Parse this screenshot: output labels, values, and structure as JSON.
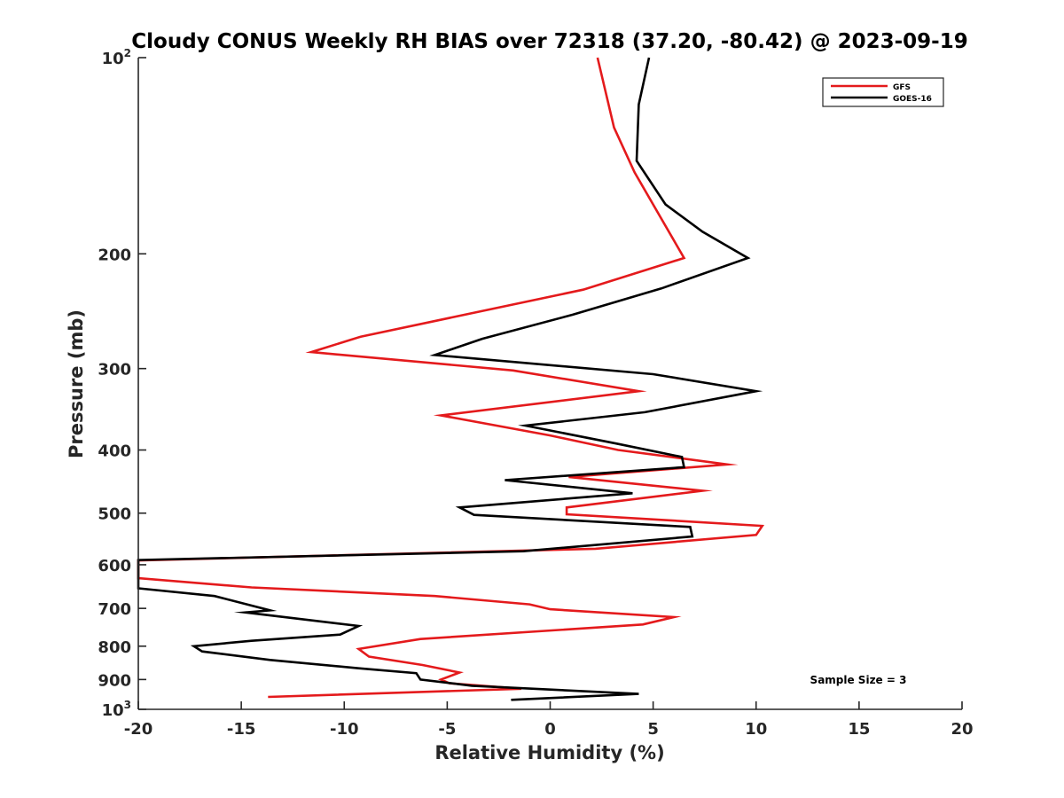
{
  "chart_data": {
    "type": "line",
    "title": "Cloudy CONUS Weekly RH BIAS over 72318 (37.20, -80.42) @ 2023-09-19",
    "xlabel": "Relative Humidity (%)",
    "ylabel": "Pressure (mb)",
    "xlim": [
      -20,
      20
    ],
    "ylim": [
      100,
      1000
    ],
    "yscale": "log",
    "y_reversed": true,
    "xticks": [
      -20,
      -15,
      -10,
      -5,
      0,
      5,
      10,
      15,
      20
    ],
    "xtick_labels": [
      "-20",
      "-15",
      "-10",
      "-5",
      "0",
      "5",
      "10",
      "15",
      "20"
    ],
    "yticks": [
      {
        "value": 100,
        "base": "10",
        "exp": "2"
      },
      {
        "value": 200,
        "label": "200"
      },
      {
        "value": 300,
        "label": "300"
      },
      {
        "value": 400,
        "label": "400"
      },
      {
        "value": 500,
        "label": "500"
      },
      {
        "value": 600,
        "label": "600"
      },
      {
        "value": 700,
        "label": "700"
      },
      {
        "value": 800,
        "label": "800"
      },
      {
        "value": 900,
        "label": "900"
      },
      {
        "value": 1000,
        "base": "10",
        "exp": "3"
      }
    ],
    "legend": {
      "position": "top-right",
      "entries": [
        "GFS",
        "GOES-16"
      ]
    },
    "annotation": "Sample Size = 3",
    "series": [
      {
        "name": "GFS",
        "color": "#e41a1c",
        "points": [
          [
            2.3,
            100
          ],
          [
            3.1,
            128
          ],
          [
            4.1,
            150
          ],
          [
            6.5,
            203
          ],
          [
            1.6,
            227
          ],
          [
            -9.2,
            268
          ],
          [
            -11.6,
            283
          ],
          [
            -1.8,
            302
          ],
          [
            4.3,
            325
          ],
          [
            -5.3,
            354
          ],
          [
            0.0,
            380
          ],
          [
            3.3,
            400
          ],
          [
            8.6,
            421
          ],
          [
            0.9,
            440
          ],
          [
            7.4,
            462
          ],
          [
            0.8,
            490
          ],
          [
            0.8,
            502
          ],
          [
            10.3,
            523
          ],
          [
            10.0,
            540
          ],
          [
            2.2,
            567
          ],
          [
            -20,
            591
          ],
          [
            -20,
            629
          ],
          [
            -14.5,
            650
          ],
          [
            -5.6,
            670
          ],
          [
            -1.0,
            690
          ],
          [
            0.0,
            702
          ],
          [
            6.0,
            722
          ],
          [
            4.5,
            741
          ],
          [
            -6.3,
            780
          ],
          [
            -9.3,
            808
          ],
          [
            -8.8,
            830
          ],
          [
            -6.2,
            855
          ],
          [
            -4.4,
            878
          ],
          [
            -5.3,
            900
          ],
          [
            -4.9,
            912
          ],
          [
            -1.4,
            930
          ],
          [
            -13.7,
            957
          ]
        ]
      },
      {
        "name": "GOES-16",
        "color": "#000000",
        "points": [
          [
            4.8,
            100
          ],
          [
            4.3,
            118
          ],
          [
            4.2,
            144
          ],
          [
            5.6,
            168
          ],
          [
            7.4,
            185
          ],
          [
            9.6,
            203
          ],
          [
            5.4,
            226
          ],
          [
            1.1,
            248
          ],
          [
            -3.3,
            270
          ],
          [
            -5.6,
            286
          ],
          [
            5.0,
            306
          ],
          [
            10.0,
            325
          ],
          [
            4.6,
            350
          ],
          [
            -1.2,
            367
          ],
          [
            3.2,
            391
          ],
          [
            6.4,
            410
          ],
          [
            6.5,
            425
          ],
          [
            -2.2,
            445
          ],
          [
            4.0,
            466
          ],
          [
            -4.4,
            490
          ],
          [
            -3.7,
            503
          ],
          [
            6.8,
            525
          ],
          [
            6.9,
            543
          ],
          [
            -1.3,
            572
          ],
          [
            -20,
            590
          ],
          [
            -20,
            652
          ],
          [
            -16.3,
            670
          ],
          [
            -13.6,
            705
          ],
          [
            -14.8,
            710
          ],
          [
            -9.3,
            745
          ],
          [
            -10.2,
            768
          ],
          [
            -14.5,
            785
          ],
          [
            -17.3,
            800
          ],
          [
            -16.9,
            815
          ],
          [
            -13.6,
            840
          ],
          [
            -9.3,
            865
          ],
          [
            -6.5,
            880
          ],
          [
            -6.3,
            900
          ],
          [
            -3.8,
            920
          ],
          [
            4.3,
            947
          ],
          [
            -1.9,
            967
          ]
        ]
      }
    ]
  }
}
